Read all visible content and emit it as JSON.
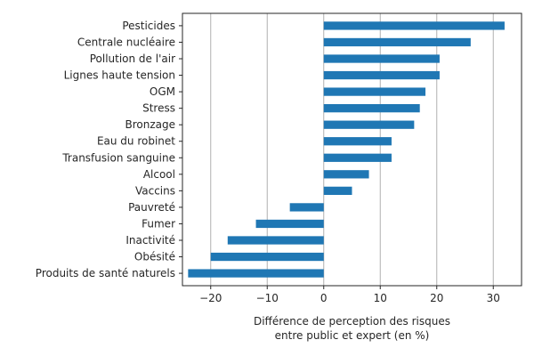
{
  "chart_data": {
    "type": "bar",
    "orientation": "horizontal",
    "categories": [
      "Pesticides",
      "Centrale nucléaire",
      "Pollution de l'air",
      "Lignes haute tension",
      "OGM",
      "Stress",
      "Bronzage",
      "Eau du robinet",
      "Transfusion sanguine",
      "Alcool",
      "Vaccins",
      "Pauvreté",
      "Fumer",
      "Inactivité",
      "Obésité",
      "Produits de santé naturels"
    ],
    "values": [
      32,
      26,
      20.5,
      20.5,
      18,
      17,
      16,
      12,
      12,
      8,
      5,
      -6,
      -12,
      -17,
      -20,
      -24
    ],
    "xlabel_lines": [
      "Différence de perception des risques",
      "entre public et expert (en %)"
    ],
    "xlim": [
      -25,
      35
    ],
    "xticks": [
      -20,
      -10,
      0,
      10,
      20,
      30
    ],
    "xtick_labels": [
      "−20",
      "−10",
      "0",
      "10",
      "20",
      "30"
    ],
    "grid": "vertical",
    "bar_color": "#1f77b4",
    "grid_color": "#b0b0b0"
  }
}
